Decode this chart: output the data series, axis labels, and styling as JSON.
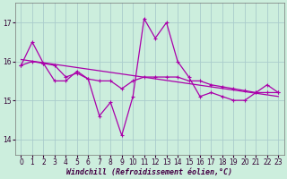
{
  "x": [
    0,
    1,
    2,
    3,
    4,
    5,
    6,
    7,
    8,
    9,
    10,
    11,
    12,
    13,
    14,
    15,
    16,
    17,
    18,
    19,
    20,
    21,
    22,
    23
  ],
  "line_jagged": [
    15.9,
    16.5,
    15.95,
    15.5,
    15.5,
    15.75,
    15.55,
    14.6,
    14.95,
    14.1,
    15.1,
    17.1,
    16.6,
    17.0,
    16.0,
    15.6,
    15.1,
    15.2,
    15.1,
    15.0,
    15.0,
    15.2,
    15.4,
    15.2
  ],
  "line_smooth": [
    15.9,
    16.0,
    15.95,
    15.9,
    15.6,
    15.7,
    15.55,
    15.5,
    15.5,
    15.3,
    15.5,
    15.6,
    15.6,
    15.6,
    15.6,
    15.5,
    15.5,
    15.4,
    15.35,
    15.3,
    15.25,
    15.2,
    15.2,
    15.2
  ],
  "trend_x": [
    0,
    23
  ],
  "trend_y": [
    16.05,
    15.1
  ],
  "line_color": "#aa00aa",
  "bg_color": "#cceedd",
  "grid_color": "#aacccc",
  "xlabel": "Windchill (Refroidissement éolien,°C)",
  "yticks": [
    14,
    15,
    16,
    17
  ],
  "xticks": [
    0,
    1,
    2,
    3,
    4,
    5,
    6,
    7,
    8,
    9,
    10,
    11,
    12,
    13,
    14,
    15,
    16,
    17,
    18,
    19,
    20,
    21,
    22,
    23
  ],
  "xlim": [
    -0.5,
    23.5
  ],
  "ylim": [
    13.6,
    17.5
  ],
  "tick_fontsize": 5.5,
  "xlabel_fontsize": 6.0
}
